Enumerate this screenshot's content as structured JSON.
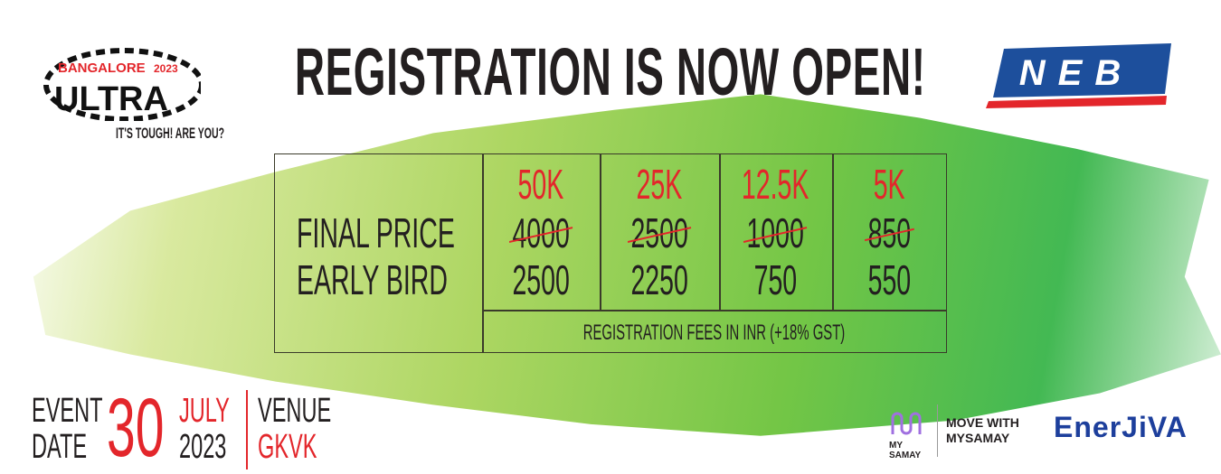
{
  "title": "REGISTRATION IS NOW OPEN!",
  "event_logo": {
    "text": "BANGALORE ULTRA",
    "year": "2023",
    "tagline": "IT'S TOUGH! ARE YOU?"
  },
  "sponsor_logo": "NEB",
  "pricing": {
    "row_labels": [
      "FINAL PRICE",
      "EARLY BIRD"
    ],
    "columns": [
      {
        "distance": "50K",
        "final_price": "4000",
        "early_bird": "2500"
      },
      {
        "distance": "25K",
        "final_price": "2500",
        "early_bird": "2250"
      },
      {
        "distance": "12.5K",
        "final_price": "1000",
        "early_bird": "750"
      },
      {
        "distance": "5K",
        "final_price": "850",
        "early_bird": "550"
      }
    ],
    "footnote": "REGISTRATION FEES IN INR (+18% GST)"
  },
  "event": {
    "label_line1": "EVENT",
    "label_line2": "DATE",
    "day": "30",
    "month": "JULY",
    "year": "2023",
    "venue_label": "VENUE",
    "venue": "GKVK"
  },
  "partners": {
    "mysamay_logo": "MY SAMAY",
    "mysamay_tagline_1": "MOVE WITH",
    "mysamay_tagline_2": "MYSAMAY",
    "enerjiva_logo": "EnerJiVA"
  },
  "colors": {
    "accent_red": "#e3262b",
    "neb_blue": "#1d4f9c",
    "green": "#39b54a"
  }
}
